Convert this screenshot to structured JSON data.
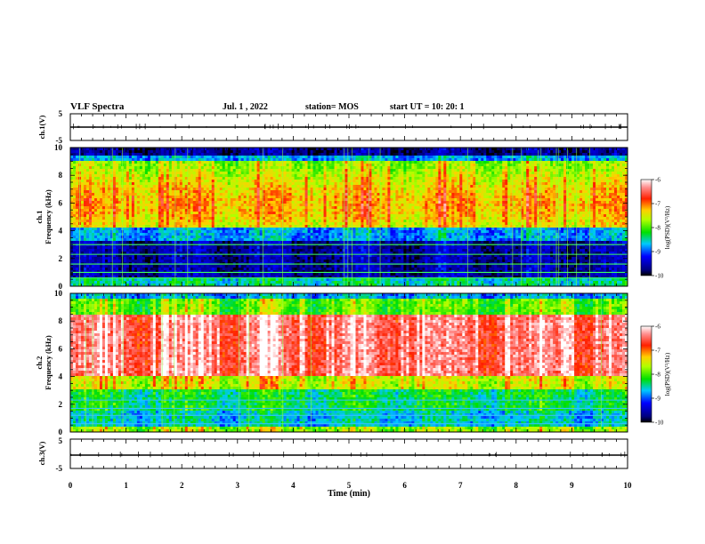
{
  "header": {
    "title": "VLF Spectra",
    "date": "Jul.  1 , 2022",
    "station": "station= MOS",
    "start_ut": "start  UT =   10: 20: 1"
  },
  "chart_data": [
    {
      "type": "line",
      "name": "ch1-voltage",
      "ylabel": "ch.1(V)",
      "ylim": [
        -5,
        5
      ],
      "ytick_labels": [
        "5",
        "-5"
      ],
      "xlim": [
        0,
        10
      ],
      "baseline_value": 0
    },
    {
      "type": "heatmap",
      "name": "ch1-spectrogram",
      "ylabel": "ch.1 Frequency (kHz)",
      "ylim": [
        0,
        10
      ],
      "ytick_labels": [
        "0",
        "2",
        "4",
        "6",
        "8",
        "10"
      ],
      "xlim": [
        0,
        10
      ],
      "colorbar": {
        "label": "log(PSD)(V²/Hz)",
        "range": [
          -10,
          -6
        ],
        "tick_labels": [
          "-6",
          "-7",
          "-8",
          "-9",
          "-10"
        ]
      }
    },
    {
      "type": "heatmap",
      "name": "ch2-spectrogram",
      "ylabel": "ch.2 Frequency (kHz)",
      "ylim": [
        0,
        10
      ],
      "ytick_labels": [
        "0",
        "2",
        "4",
        "6",
        "8",
        "10"
      ],
      "xlim": [
        0,
        10
      ],
      "colorbar": {
        "label": "log(PSD)(V²/Hz)",
        "range": [
          -10,
          -6
        ],
        "tick_labels": [
          "-6",
          "-7",
          "-8",
          "-9",
          "-10"
        ]
      }
    },
    {
      "type": "line",
      "name": "ch3-voltage",
      "ylabel": "ch.3(V)",
      "ylim": [
        -5,
        5
      ],
      "ytick_labels": [
        "5",
        "-5"
      ],
      "xlim": [
        0,
        10
      ],
      "baseline_value": 0
    }
  ],
  "x_axis": {
    "label": "Time  (min)",
    "range": [
      0,
      10
    ],
    "tick_labels": [
      "0",
      "1",
      "2",
      "3",
      "4",
      "5",
      "6",
      "7",
      "8",
      "9",
      "10"
    ]
  },
  "colors": {
    "spectrum_low": "#00007f",
    "spectrum_mid": "#00e000",
    "spectrum_high": "#ff0000",
    "plot_frame": "#000000"
  }
}
